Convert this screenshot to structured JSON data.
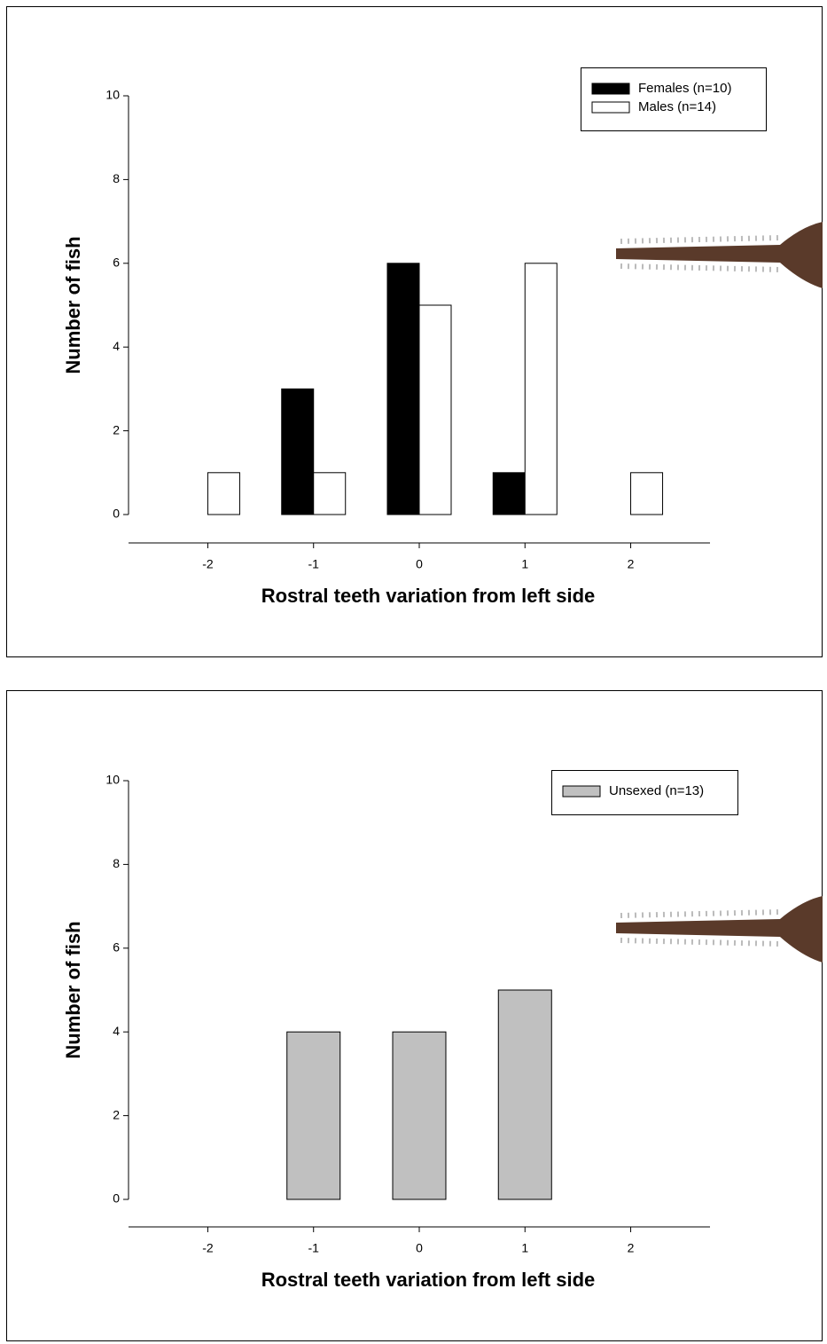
{
  "chart_data": [
    {
      "type": "bar",
      "x": [
        -2,
        -1,
        0,
        1,
        2
      ],
      "series": [
        {
          "name": "Females (n=10)",
          "color": "#000000",
          "values": [
            0,
            3,
            6,
            1,
            0
          ]
        },
        {
          "name": "Males (n=14)",
          "color": "#ffffff",
          "values": [
            1,
            1,
            5,
            6,
            1
          ]
        }
      ],
      "xlabel": "Rostral teeth variation from left side",
      "ylabel": "Number of fish",
      "xlim": [
        -2.75,
        2.75
      ],
      "xticks": [
        -2,
        -1,
        0,
        1,
        2
      ],
      "ylim": [
        0,
        10
      ],
      "yticks": [
        0,
        2,
        4,
        6,
        8,
        10
      ],
      "grid": false,
      "legend": "upper right"
    },
    {
      "type": "bar",
      "x": [
        -2,
        -1,
        0,
        1,
        2
      ],
      "series": [
        {
          "name": "Unsexed (n=13)",
          "color": "#c0c0c0",
          "values": [
            0,
            4,
            4,
            5,
            0
          ]
        }
      ],
      "xlabel": "Rostral teeth variation from left side",
      "ylabel": "Number of fish",
      "xlim": [
        -2.75,
        2.75
      ],
      "xticks": [
        -2,
        -1,
        0,
        1,
        2
      ],
      "ylim": [
        0,
        10
      ],
      "yticks": [
        0,
        2,
        4,
        6,
        8,
        10
      ],
      "grid": false,
      "legend": "upper right"
    }
  ]
}
